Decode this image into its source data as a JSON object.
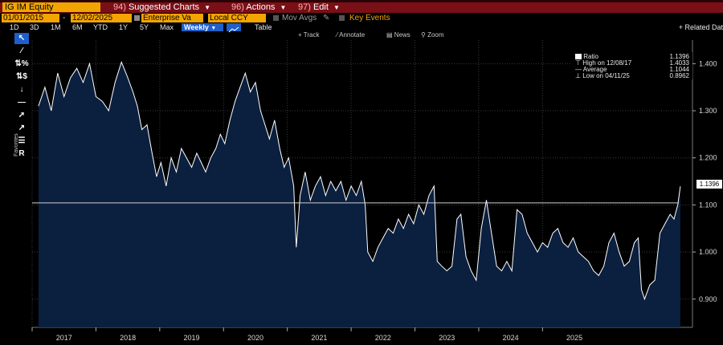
{
  "menu": {
    "ticker": "IG IM Equity",
    "suggested_charts": {
      "num": "94)",
      "label": "Suggested Charts"
    },
    "actions": {
      "num": "96)",
      "label": "Actions"
    },
    "edit": {
      "num": "97)",
      "label": "Edit"
    }
  },
  "params": {
    "start_date": "01/01/2015",
    "end_date": "12/02/2025",
    "separator": "-",
    "metric": "Enterprise Va",
    "currency": "Local CCY",
    "mov_avgs": "Mov Avgs",
    "key_events": "Key Events"
  },
  "ranges": [
    "1D",
    "3D",
    "1M",
    "6M",
    "YTD",
    "1Y",
    "5Y",
    "Max"
  ],
  "frequency": "Weekly",
  "table_label": "Table",
  "related_label": "+ Related Dat",
  "chart_toolbar": {
    "track": "Track",
    "annotate": "Annotate",
    "news": "News",
    "zoom": "Zoom"
  },
  "left_tools": {
    "favorites_label": "Favorites",
    "r_label": "R"
  },
  "legend": {
    "ratio_label": "Ratio",
    "ratio_value": "1.1396",
    "high_label": "High on 12/08/17",
    "high_value": "1.4033",
    "avg_label": "Average",
    "avg_value": "1.1044",
    "low_label": "Low on 04/11/25",
    "low_value": "0.8962"
  },
  "price_tag": "1.1396",
  "colors": {
    "background": "#000000",
    "area_fill": "#0b1f3f",
    "line": "#ffffff",
    "menu_bar": "#7a0f17",
    "field": "#f2a400",
    "accent": "#1f5fc9"
  },
  "chart_data": {
    "type": "area",
    "y_tick_labels": [
      "0.900",
      "1.000",
      "1.100",
      "1.200",
      "1.300",
      "1.400"
    ],
    "x_tick_labels": [
      "2017",
      "2018",
      "2019",
      "2020",
      "2021",
      "2022",
      "2023",
      "2024",
      "2025"
    ],
    "ylim": [
      0.84,
      1.45
    ],
    "average": 1.1044,
    "last_value": 1.1396,
    "grid": true,
    "series": [
      {
        "name": "Ratio",
        "points": [
          [
            2016.6,
            1.31
          ],
          [
            2016.7,
            1.35
          ],
          [
            2016.8,
            1.3
          ],
          [
            2016.9,
            1.38
          ],
          [
            2017.0,
            1.33
          ],
          [
            2017.1,
            1.37
          ],
          [
            2017.2,
            1.39
          ],
          [
            2017.3,
            1.36
          ],
          [
            2017.4,
            1.4
          ],
          [
            2017.5,
            1.33
          ],
          [
            2017.6,
            1.32
          ],
          [
            2017.7,
            1.3
          ],
          [
            2017.8,
            1.36
          ],
          [
            2017.9,
            1.4033
          ],
          [
            2018.0,
            1.37
          ],
          [
            2018.08,
            1.34
          ],
          [
            2018.15,
            1.31
          ],
          [
            2018.22,
            1.26
          ],
          [
            2018.3,
            1.27
          ],
          [
            2018.38,
            1.21
          ],
          [
            2018.45,
            1.16
          ],
          [
            2018.52,
            1.19
          ],
          [
            2018.6,
            1.14
          ],
          [
            2018.68,
            1.2
          ],
          [
            2018.76,
            1.17
          ],
          [
            2018.84,
            1.22
          ],
          [
            2018.92,
            1.2
          ],
          [
            2019.0,
            1.18
          ],
          [
            2019.08,
            1.21
          ],
          [
            2019.15,
            1.19
          ],
          [
            2019.22,
            1.17
          ],
          [
            2019.3,
            1.2
          ],
          [
            2019.38,
            1.22
          ],
          [
            2019.45,
            1.25
          ],
          [
            2019.52,
            1.23
          ],
          [
            2019.6,
            1.28
          ],
          [
            2019.68,
            1.32
          ],
          [
            2019.76,
            1.35
          ],
          [
            2019.84,
            1.38
          ],
          [
            2019.92,
            1.34
          ],
          [
            2020.0,
            1.36
          ],
          [
            2020.08,
            1.3
          ],
          [
            2020.15,
            1.27
          ],
          [
            2020.22,
            1.24
          ],
          [
            2020.3,
            1.28
          ],
          [
            2020.38,
            1.22
          ],
          [
            2020.45,
            1.18
          ],
          [
            2020.52,
            1.2
          ],
          [
            2020.6,
            1.14
          ],
          [
            2020.64,
            1.01
          ],
          [
            2020.7,
            1.12
          ],
          [
            2020.78,
            1.17
          ],
          [
            2020.86,
            1.11
          ],
          [
            2020.94,
            1.14
          ],
          [
            2021.02,
            1.16
          ],
          [
            2021.1,
            1.12
          ],
          [
            2021.18,
            1.15
          ],
          [
            2021.26,
            1.13
          ],
          [
            2021.34,
            1.15
          ],
          [
            2021.42,
            1.11
          ],
          [
            2021.5,
            1.14
          ],
          [
            2021.58,
            1.12
          ],
          [
            2021.66,
            1.15
          ],
          [
            2021.72,
            1.1
          ],
          [
            2021.76,
            1.0
          ],
          [
            2021.84,
            0.98
          ],
          [
            2021.92,
            1.01
          ],
          [
            2022.0,
            1.03
          ],
          [
            2022.08,
            1.05
          ],
          [
            2022.16,
            1.04
          ],
          [
            2022.24,
            1.07
          ],
          [
            2022.32,
            1.05
          ],
          [
            2022.4,
            1.08
          ],
          [
            2022.48,
            1.06
          ],
          [
            2022.56,
            1.1
          ],
          [
            2022.64,
            1.08
          ],
          [
            2022.72,
            1.12
          ],
          [
            2022.8,
            1.14
          ],
          [
            2022.85,
            0.98
          ],
          [
            2022.92,
            0.97
          ],
          [
            2023.0,
            0.96
          ],
          [
            2023.08,
            0.97
          ],
          [
            2023.16,
            1.07
          ],
          [
            2023.22,
            1.08
          ],
          [
            2023.3,
            0.99
          ],
          [
            2023.38,
            0.96
          ],
          [
            2023.46,
            0.94
          ],
          [
            2023.54,
            1.05
          ],
          [
            2023.62,
            1.11
          ],
          [
            2023.7,
            1.04
          ],
          [
            2023.78,
            0.97
          ],
          [
            2023.86,
            0.96
          ],
          [
            2023.94,
            0.98
          ],
          [
            2024.02,
            0.96
          ],
          [
            2024.1,
            1.09
          ],
          [
            2024.18,
            1.08
          ],
          [
            2024.26,
            1.04
          ],
          [
            2024.34,
            1.02
          ],
          [
            2024.42,
            1.0
          ],
          [
            2024.5,
            1.02
          ],
          [
            2024.58,
            1.01
          ],
          [
            2024.66,
            1.04
          ],
          [
            2024.74,
            1.05
          ],
          [
            2024.82,
            1.02
          ],
          [
            2024.9,
            1.01
          ],
          [
            2024.98,
            1.03
          ],
          [
            2025.06,
            1.0
          ],
          [
            2025.14,
            0.99
          ],
          [
            2025.22,
            0.98
          ],
          [
            2025.3,
            0.96
          ],
          [
            2025.38,
            0.95
          ],
          [
            2025.46,
            0.97
          ],
          [
            2025.54,
            1.02
          ],
          [
            2025.62,
            1.04
          ],
          [
            2025.7,
            1.0
          ],
          [
            2025.78,
            0.97
          ],
          [
            2025.86,
            0.98
          ],
          [
            2025.94,
            1.02
          ],
          [
            2026.0,
            1.03
          ],
          [
            2026.05,
            0.92
          ],
          [
            2026.1,
            0.9
          ],
          [
            2026.18,
            0.93
          ],
          [
            2026.26,
            0.94
          ],
          [
            2026.34,
            1.04
          ],
          [
            2026.42,
            1.06
          ],
          [
            2026.5,
            1.08
          ],
          [
            2026.56,
            1.07
          ],
          [
            2026.62,
            1.1
          ],
          [
            2026.66,
            1.1396
          ]
        ]
      }
    ]
  }
}
